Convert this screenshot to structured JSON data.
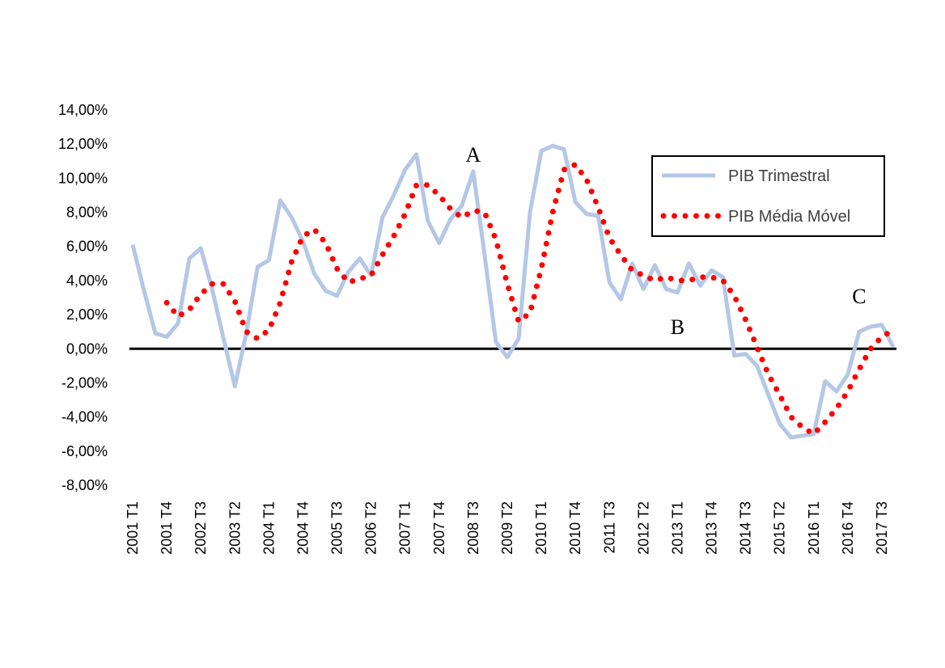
{
  "chart_data": {
    "type": "line",
    "ylim": [
      -0.08,
      0.14
    ],
    "y_ticks": [
      -0.08,
      -0.06,
      -0.04,
      -0.02,
      0.0,
      0.02,
      0.04,
      0.06,
      0.08,
      0.1,
      0.12,
      0.14
    ],
    "y_tick_labels": [
      "-8,00%",
      "-6,00%",
      "-4,00%",
      "-2,00%",
      "0,00%",
      "2,00%",
      "4,00%",
      "6,00%",
      "8,00%",
      "10,00%",
      "12,00%",
      "14,00%"
    ],
    "x": [
      "2001 T1",
      "2001 T2",
      "2001 T3",
      "2001 T4",
      "2002 T1",
      "2002 T2",
      "2002 T3",
      "2002 T4",
      "2003 T1",
      "2003 T2",
      "2003 T3",
      "2003 T4",
      "2004 T1",
      "2004 T2",
      "2004 T3",
      "2004 T4",
      "2005 T1",
      "2005 T2",
      "2005 T3",
      "2005 T4",
      "2006 T1",
      "2006 T2",
      "2006 T3",
      "2006 T4",
      "2007 T1",
      "2007 T2",
      "2007 T3",
      "2007 T4",
      "2008 T1",
      "2008 T2",
      "2008 T3",
      "2008 T4",
      "2009 T1",
      "2009 T2",
      "2009 T3",
      "2009 T4",
      "2010 T1",
      "2010 T2",
      "2010 T3",
      "2010 T4",
      "2011 T1",
      "2011 T2",
      "2011 T3",
      "2011 T4",
      "2012 T1",
      "2012 T2",
      "2012 T3",
      "2012 T4",
      "2013 T1",
      "2013 T2",
      "2013 T3",
      "2013 T4",
      "2014 T1",
      "2014 T2",
      "2014 T3",
      "2014 T4",
      "2015 T1",
      "2015 T2",
      "2015 T3",
      "2015 T4",
      "2016 T1",
      "2016 T2",
      "2016 T3",
      "2016 T4",
      "2017 T1",
      "2017 T2",
      "2017 T3",
      "2017 T4"
    ],
    "x_tick_labels": [
      "2001 T1",
      "2001 T4",
      "2002 T3",
      "2003 T2",
      "2004 T1",
      "2004 T4",
      "2005 T3",
      "2006 T2",
      "2007 T1",
      "2007 T4",
      "2008 T3",
      "2009 T2",
      "2010 T1",
      "2010 T4",
      "2011 T3",
      "2012 T2",
      "2013 T1",
      "2013 T4",
      "2014 T3",
      "2015 T2",
      "2016 T1",
      "2016 T4",
      "2017 T3"
    ],
    "x_tick_every": 3,
    "series": [
      {
        "name": "PIB Trimestral",
        "color": "#b4c7e7",
        "style": "solid",
        "values": [
          0.061,
          0.034,
          0.009,
          0.007,
          0.015,
          0.053,
          0.059,
          0.035,
          0.006,
          -0.022,
          0.009,
          0.048,
          0.052,
          0.087,
          0.077,
          0.063,
          0.044,
          0.034,
          0.031,
          0.045,
          0.053,
          0.043,
          0.077,
          0.09,
          0.105,
          0.114,
          0.075,
          0.062,
          0.076,
          0.084,
          0.104,
          0.055,
          0.004,
          -0.005,
          0.006,
          0.08,
          0.116,
          0.119,
          0.117,
          0.086,
          0.079,
          0.078,
          0.039,
          0.029,
          0.05,
          0.035,
          0.049,
          0.035,
          0.033,
          0.05,
          0.037,
          0.046,
          0.042,
          -0.004,
          -0.003,
          -0.01,
          -0.027,
          -0.044,
          -0.052,
          -0.051,
          -0.05,
          -0.019,
          -0.025,
          -0.015,
          0.01,
          0.013,
          0.014,
          0.001
        ]
      },
      {
        "name": "PIB Média Móvel",
        "color": "#ff0000",
        "style": "dotted",
        "values": [
          null,
          null,
          null,
          0.027,
          0.019,
          0.023,
          0.032,
          0.038,
          0.038,
          0.028,
          0.01,
          0.006,
          0.011,
          0.027,
          0.051,
          0.066,
          0.07,
          0.062,
          0.047,
          0.039,
          0.041,
          0.043,
          0.055,
          0.066,
          0.079,
          0.096,
          0.096,
          0.09,
          0.082,
          0.077,
          0.081,
          0.08,
          0.064,
          0.038,
          0.016,
          0.021,
          0.047,
          0.08,
          0.105,
          0.108,
          0.099,
          0.083,
          0.065,
          0.055,
          0.046,
          0.043,
          0.04,
          0.042,
          0.04,
          0.04,
          0.042,
          0.042,
          0.04,
          0.031,
          0.017,
          0.001,
          -0.015,
          -0.027,
          -0.04,
          -0.046,
          -0.05,
          -0.043,
          -0.035,
          -0.025,
          -0.012,
          0.0,
          0.007,
          0.011
        ]
      }
    ],
    "annotations": [
      {
        "text": "A",
        "x": "2008 T3",
        "y": 0.114
      },
      {
        "text": "B",
        "x": "2013 T1",
        "y": 0.013
      },
      {
        "text": "C",
        "x": "2017 T1",
        "y": 0.031
      }
    ],
    "zero_line": true,
    "grid": false,
    "legend_position": "top-right"
  }
}
